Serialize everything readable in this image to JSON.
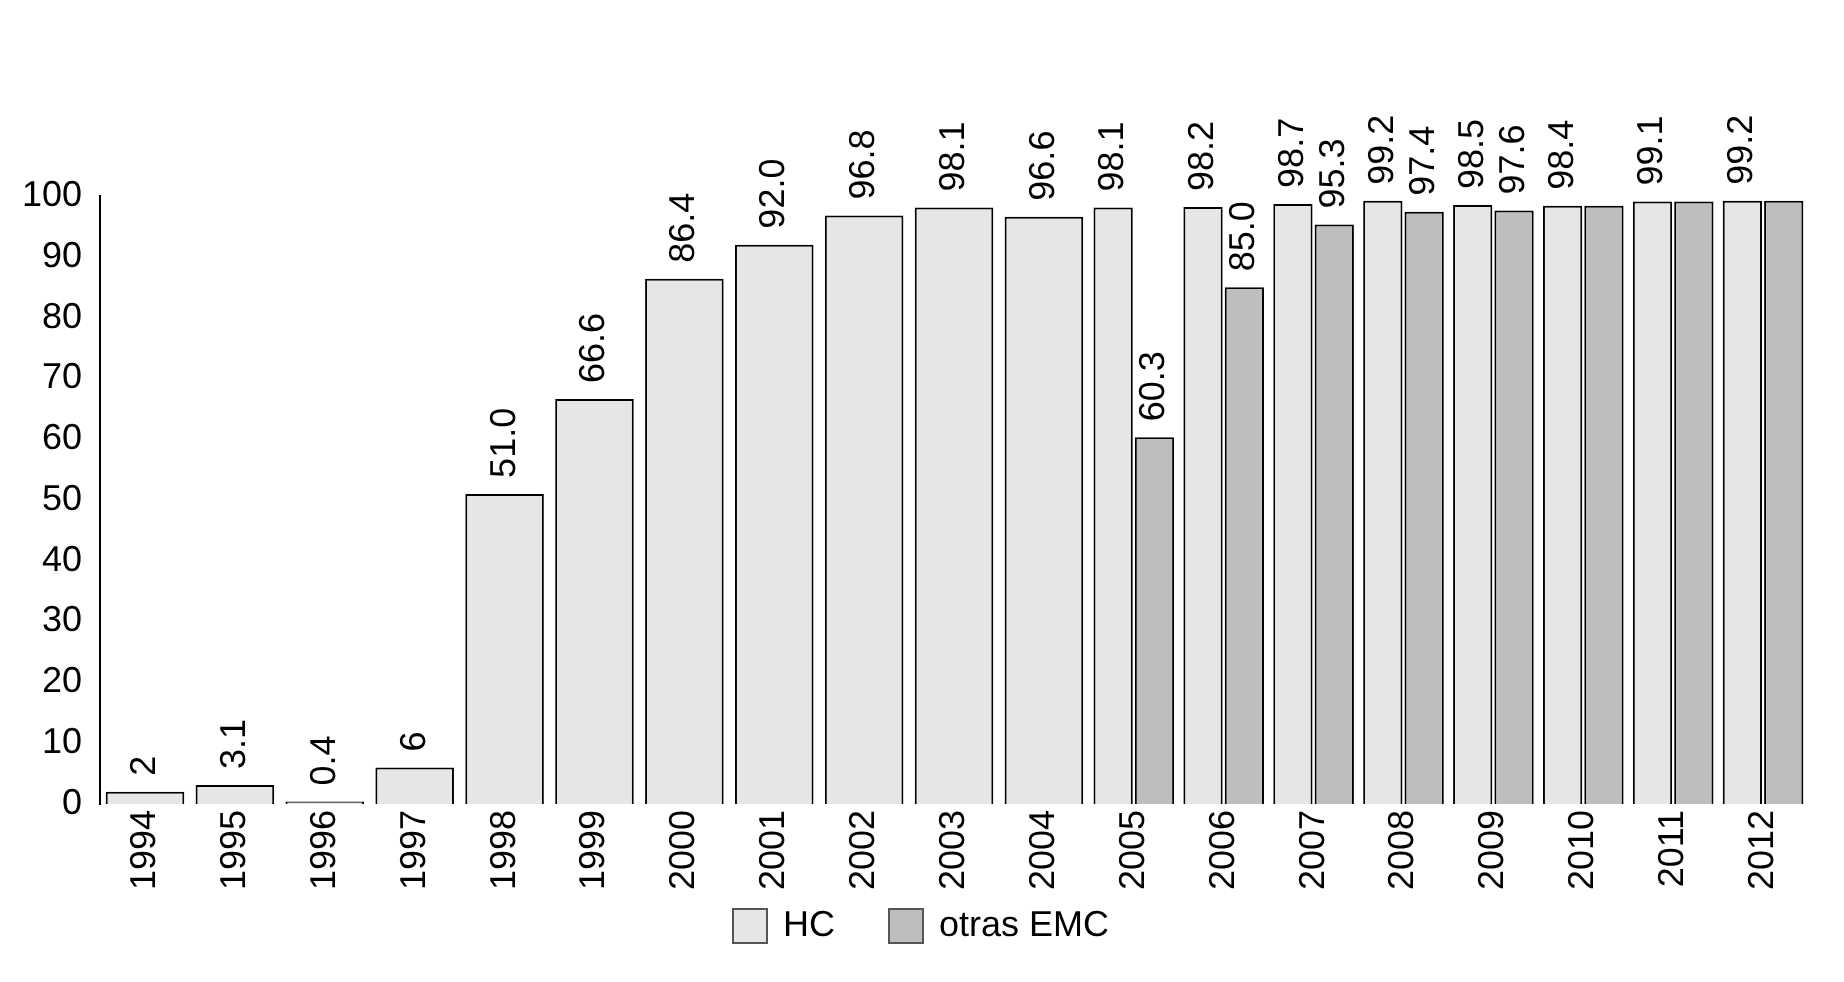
{
  "chart_data": {
    "type": "bar",
    "categories": [
      "1994",
      "1995",
      "1996",
      "1997",
      "1998",
      "1999",
      "2000",
      "2001",
      "2002",
      "2003",
      "2004",
      "2005",
      "2006",
      "2007",
      "2008",
      "2009",
      "2010",
      "2011",
      "2012"
    ],
    "series": [
      {
        "name": "HC",
        "color": "#e6e6e6",
        "values": [
          2,
          3.1,
          0.4,
          6,
          51.0,
          66.6,
          86.4,
          92.0,
          96.8,
          98.1,
          96.6,
          98.1,
          98.2,
          98.7,
          99.2,
          98.5,
          98.4,
          99.1,
          99.2
        ],
        "value_labels": [
          "2",
          "3.1",
          "0.4",
          "6",
          "51.0",
          "66.6",
          "86.4",
          "92.0",
          "96.8",
          "98.1",
          "96.6",
          "98.1",
          "98.2",
          "98.7",
          "99.2",
          "98.5",
          "98.4",
          "99.1",
          "99.2"
        ]
      },
      {
        "name": "otras EMC",
        "color": "#bebebe",
        "values": [
          null,
          null,
          null,
          null,
          null,
          null,
          null,
          null,
          null,
          null,
          null,
          60.3,
          85.0,
          95.3,
          97.4,
          97.6,
          98.4,
          99.1,
          99.2
        ],
        "value_labels": [
          null,
          null,
          null,
          null,
          null,
          null,
          null,
          null,
          null,
          null,
          null,
          "60.3",
          "85.0",
          "95.3",
          "97.4",
          "97.6",
          null,
          null,
          null
        ]
      }
    ],
    "ylim": [
      0,
      100
    ],
    "yticks": [
      0,
      10,
      20,
      30,
      40,
      50,
      60,
      70,
      80,
      90,
      100
    ],
    "grid": false,
    "legend": "bottom"
  }
}
